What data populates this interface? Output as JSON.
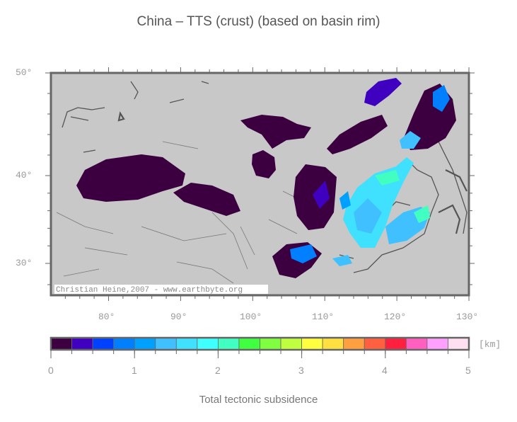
{
  "title": "China – TTS (crust) (based on basin rim)",
  "map": {
    "background_color": "#c8c8c8",
    "lon_labels": [
      "80°",
      "90°",
      "100°",
      "110°",
      "120°",
      "130°"
    ],
    "lat_labels": [
      "50°",
      "40°",
      "30°"
    ],
    "credit": "Christian Heine,2007 - www.earthbyte.org"
  },
  "colorbar": {
    "title": "Total tectonic subsidence",
    "unit": "[km]",
    "range": [
      0,
      5
    ],
    "tick_labels": [
      "0",
      "1",
      "2",
      "3",
      "4",
      "5"
    ],
    "colors": [
      "#3c0040",
      "#4000c0",
      "#0040ff",
      "#0080ff",
      "#00a0ff",
      "#40c0ff",
      "#40e0ff",
      "#40ffff",
      "#40ffc0",
      "#40ff40",
      "#80ff40",
      "#c0ff40",
      "#ffff40",
      "#ffe040",
      "#ffa040",
      "#ff6040",
      "#ff2040",
      "#ff60c0",
      "#ffa0ff",
      "#ffe0f0"
    ]
  }
}
